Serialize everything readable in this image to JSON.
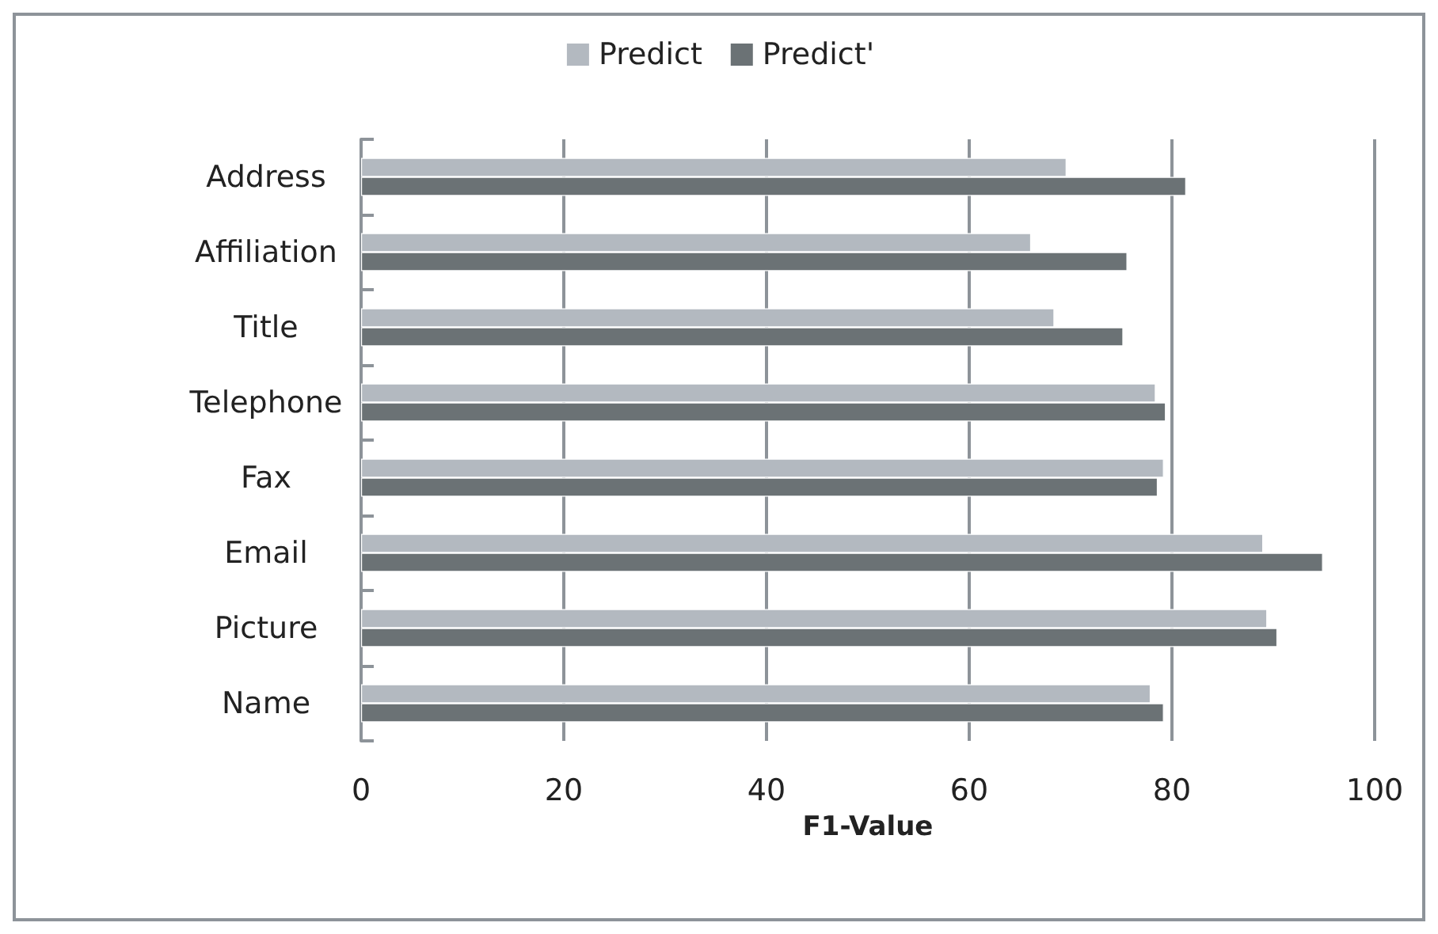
{
  "chart_data": {
    "type": "bar",
    "orientation": "horizontal",
    "xlabel": "F1-Value",
    "categories": [
      "Address",
      "Affiliation",
      "Title",
      "Telephone",
      "Fax",
      "Email",
      "Picture",
      "Name"
    ],
    "series": [
      {
        "name": "Predict",
        "color": "#b3b9c0",
        "values": [
          69.6,
          66.1,
          68.4,
          78.4,
          79.2,
          89.0,
          89.4,
          77.9
        ]
      },
      {
        "name": "Predict'",
        "color": "#6b7275",
        "values": [
          81.4,
          75.6,
          75.2,
          79.4,
          78.6,
          94.9,
          90.4,
          79.2
        ]
      }
    ],
    "xlim": [
      0,
      100
    ],
    "xticks": [
      0,
      20,
      40,
      60,
      80,
      100
    ],
    "grid": "x",
    "legend": "top"
  }
}
